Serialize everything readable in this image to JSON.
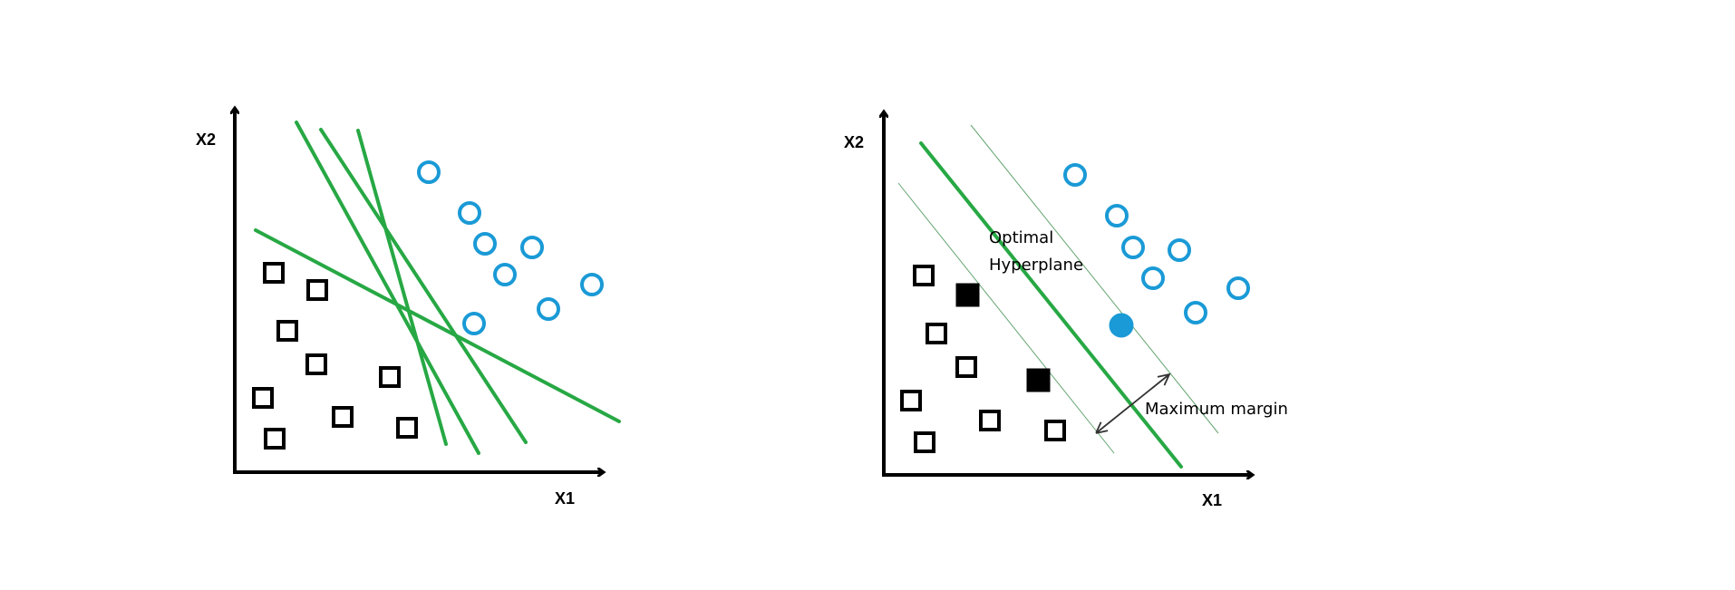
{
  "colors": {
    "background": "#ffffff",
    "axis": "#000000",
    "square": "#000000",
    "circle": "#1a9ad6",
    "hyperplane": "#27a844",
    "margin_line": "#3f8f4f",
    "arrow": "#333333"
  },
  "left_panel": {
    "x_axis_label": "X1",
    "y_axis_label": "X2",
    "squares": 9,
    "circles": 8,
    "candidate_lines": 4
  },
  "right_panel": {
    "x_axis_label": "X1",
    "y_axis_label": "X2",
    "hyperplane_label_line1": "Optimal",
    "hyperplane_label_line2": "Hyperplane",
    "margin_label": "Maximum margin",
    "squares": 9,
    "filled_squares": 2,
    "circles": 8,
    "filled_circles": 1
  }
}
